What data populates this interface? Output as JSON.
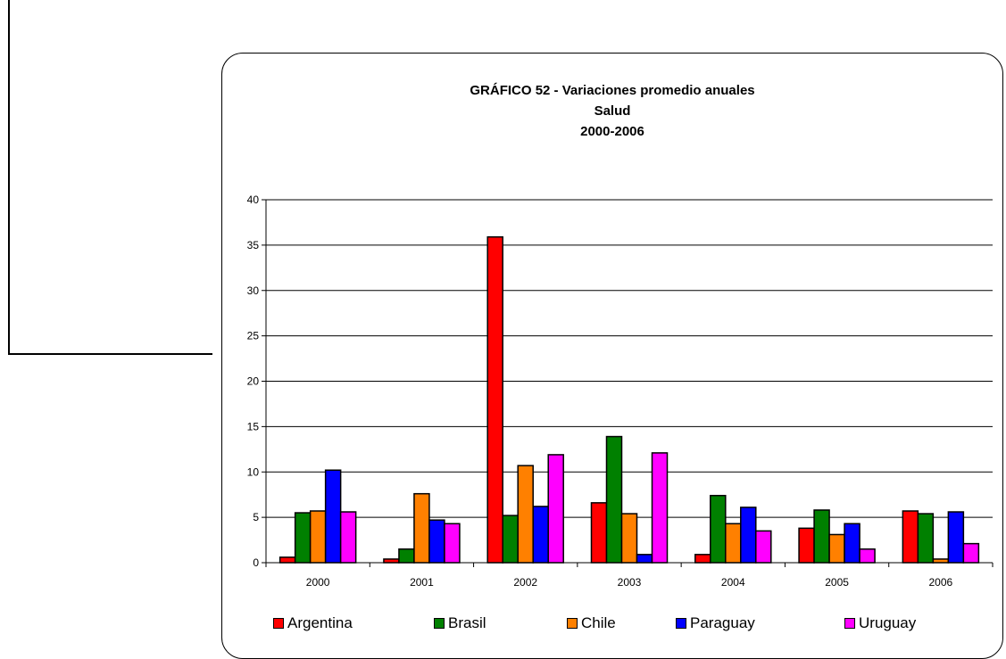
{
  "chart_data": {
    "type": "bar",
    "title": "GRÁFICO 52 - Variaciones promedio anuales",
    "subtitle": "Salud",
    "subtitle2": "2000-2006",
    "categories": [
      "2000",
      "2001",
      "2002",
      "2003",
      "2004",
      "2005",
      "2006"
    ],
    "series": [
      {
        "name": "Argentina",
        "color": "#ff0000",
        "values": [
          0.6,
          0.4,
          35.9,
          6.6,
          0.9,
          3.8,
          5.7
        ]
      },
      {
        "name": "Brasil",
        "color": "#008000",
        "values": [
          5.5,
          1.5,
          5.2,
          13.9,
          7.4,
          5.8,
          5.4
        ]
      },
      {
        "name": "Chile",
        "color": "#ff8000",
        "values": [
          5.7,
          7.6,
          10.7,
          5.4,
          4.3,
          3.1,
          0.4
        ]
      },
      {
        "name": "Paraguay",
        "color": "#0000ff",
        "values": [
          10.2,
          4.7,
          6.2,
          0.9,
          6.1,
          4.3,
          5.6
        ]
      },
      {
        "name": "Uruguay",
        "color": "#ff00ff",
        "values": [
          5.6,
          4.3,
          11.9,
          12.1,
          3.5,
          1.5,
          2.1
        ]
      }
    ],
    "ylim": [
      0,
      40
    ],
    "yticks": [
      "0",
      "5",
      "10",
      "15",
      "20",
      "25",
      "30",
      "35",
      "40"
    ],
    "grid": true,
    "legend": "bottom"
  }
}
